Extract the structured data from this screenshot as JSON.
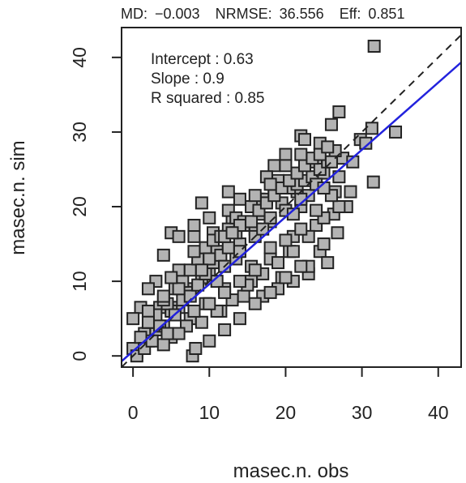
{
  "chart_data": {
    "type": "scatter",
    "title": "",
    "header_stats": [
      {
        "label": "MD:",
        "value": "−0.003"
      },
      {
        "label": "NRMSE:",
        "value": "36.556"
      },
      {
        "label": "Eff:",
        "value": "0.851"
      }
    ],
    "annotations": [
      "Intercept : 0.63",
      "Slope : 0.9",
      "R squared : 0.85"
    ],
    "xlabel": "masec.n. obs",
    "ylabel": "masec.n. sim",
    "xlim": [
      -1.5,
      43
    ],
    "ylim": [
      -1.5,
      44
    ],
    "xticks": [
      0,
      10,
      20,
      30,
      40
    ],
    "yticks": [
      0,
      10,
      20,
      30,
      40
    ],
    "grid": false,
    "marker": "square",
    "marker_fill": "#b3b3b3",
    "marker_edge": "#222222",
    "one_to_one_line": {
      "style": "dashed",
      "color": "#222222",
      "x": [
        -1.5,
        43
      ],
      "y": [
        -1.5,
        43
      ]
    },
    "regression_line": {
      "color": "#2222dd",
      "intercept": 0.63,
      "slope": 0.9
    },
    "points": {
      "x": [
        31.6,
        34.4,
        31.3,
        27.0,
        26.0,
        22.0,
        24.5,
        31.5,
        29.8,
        27.5,
        25.0,
        22.5,
        20.0,
        18.5,
        23.0,
        26.5,
        28.8,
        30.5,
        26.3,
        24.0,
        21.5,
        19.0,
        17.5,
        16.5,
        18.0,
        21.0,
        24.5,
        26.8,
        28.0,
        25.5,
        23.0,
        20.5,
        19.5,
        22.0,
        24.0,
        27.0,
        18.0,
        15.5,
        14.0,
        16.0,
        13.0,
        12.5,
        11.0,
        9.0,
        8.0,
        10.0,
        12.0,
        14.5,
        11.5,
        9.5,
        7.5,
        6.0,
        7.0,
        8.5,
        10.5,
        12.5,
        14.0,
        15.5,
        17.0,
        19.0,
        21.0,
        23.0,
        25.0,
        27.0,
        16.0,
        13.5,
        11.0,
        9.0,
        7.0,
        5.0,
        4.0,
        3.0,
        2.0,
        1.0,
        0.5,
        0.0,
        1.5,
        2.5,
        3.5,
        4.5,
        5.5,
        6.5,
        7.5,
        8.5,
        9.5,
        10.5,
        11.5,
        12.5,
        13.5,
        14.5,
        15.5,
        16.5,
        17.5,
        18.5,
        19.5,
        20.5,
        21.5,
        22.5,
        23.5,
        24.5,
        25.5,
        26.5,
        3.0,
        5.0,
        7.0,
        9.0,
        11.0,
        13.0,
        15.0,
        17.0,
        19.0,
        21.0,
        23.0,
        25.0,
        1.0,
        2.0,
        4.0,
        6.0,
        8.0,
        10.0,
        12.0,
        14.0,
        16.0,
        18.0,
        20.0,
        22.0,
        24.0,
        26.0,
        0.5,
        1.5,
        2.5,
        3.5,
        4.5,
        5.5,
        6.5,
        7.5,
        8.5,
        9.5,
        10.5,
        11.5,
        12.5,
        13.5,
        14.5,
        15.5,
        16.5,
        17.5,
        18.5,
        19.5,
        20.5,
        21.5,
        22.5,
        23.5,
        24.5,
        25.5,
        7.8,
        8.2,
        10.0,
        12.0,
        14.0,
        16.0,
        18.0,
        20.0,
        22.0,
        5.0,
        6.0,
        4.0,
        3.0,
        2.0,
        1.0,
        0.0,
        2.0,
        4.0,
        6.0,
        8.0,
        10.0,
        12.0,
        14.0,
        16.0,
        18.0,
        20.0,
        22.0,
        24.0,
        26.0,
        28.5,
        22.0,
        20.0,
        18.0,
        16.0,
        14.0,
        12.0,
        10.0,
        8.0,
        6.0,
        4.0,
        2.0,
        5.0,
        9.0,
        13.0,
        17.0,
        21.0,
        25.0
      ],
      "y": [
        41.5,
        30.0,
        30.5,
        32.7,
        31.0,
        29.5,
        28.5,
        23.3,
        29.0,
        26.5,
        24.5,
        29.0,
        27.0,
        25.5,
        21.5,
        22.0,
        26.0,
        28.5,
        19.0,
        17.5,
        22.0,
        23.5,
        24.0,
        21.0,
        18.0,
        16.0,
        14.0,
        16.5,
        20.0,
        12.5,
        11.0,
        14.0,
        10.5,
        20.0,
        26.0,
        24.0,
        13.0,
        12.0,
        15.0,
        20.0,
        18.0,
        22.0,
        14.0,
        20.5,
        16.0,
        11.0,
        9.0,
        8.0,
        6.0,
        7.0,
        5.0,
        6.5,
        9.0,
        12.0,
        16.5,
        19.5,
        21.0,
        10.0,
        8.0,
        9.0,
        10.0,
        12.0,
        15.0,
        20.0,
        17.0,
        13.0,
        10.0,
        10.5,
        8.5,
        6.0,
        4.0,
        3.5,
        2.0,
        1.5,
        0.5,
        1.0,
        3.0,
        5.0,
        6.5,
        7.0,
        9.0,
        10.0,
        11.5,
        13.0,
        14.5,
        15.5,
        16.0,
        17.0,
        18.5,
        18.0,
        20.0,
        19.0,
        21.0,
        22.0,
        20.5,
        22.5,
        23.0,
        23.5,
        24.0,
        25.0,
        26.0,
        27.5,
        5.5,
        2.5,
        4.0,
        4.5,
        6.0,
        7.5,
        9.5,
        11.0,
        12.5,
        14.0,
        16.0,
        18.5,
        2.5,
        4.5,
        1.5,
        3.0,
        6.0,
        7.0,
        8.5,
        10.0,
        11.5,
        14.5,
        15.5,
        17.0,
        19.5,
        21.5,
        0.0,
        1.0,
        2.0,
        4.0,
        3.0,
        5.5,
        7.5,
        8.0,
        9.5,
        11.0,
        12.5,
        13.5,
        14.5,
        16.5,
        17.5,
        18.0,
        19.5,
        20.5,
        21.5,
        22.5,
        23.5,
        24.5,
        25.5,
        26.5,
        27.0,
        28.0,
        0.0,
        1.0,
        2.0,
        3.5,
        5.0,
        7.0,
        8.5,
        10.5,
        12.0,
        16.5,
        16.0,
        13.5,
        10.0,
        9.0,
        6.5,
        5.0,
        6.0,
        7.5,
        11.5,
        14.0,
        18.5,
        12.0,
        14.0,
        16.0,
        18.5,
        19.5,
        21.0,
        23.0,
        26.0,
        22.0,
        27.0,
        25.5,
        23.0,
        21.5,
        17.5,
        16.0,
        13.0,
        17.5,
        9.0,
        8.0,
        4.5,
        10.5,
        11.5,
        16.5,
        17.0,
        19.0,
        22.5
      ]
    }
  }
}
